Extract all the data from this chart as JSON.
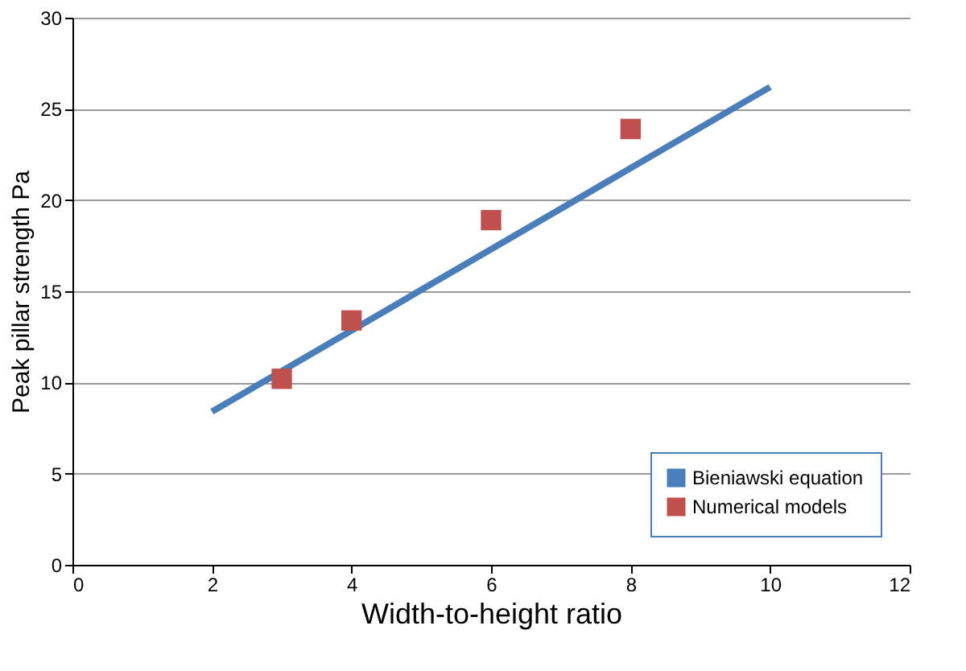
{
  "chart_data": {
    "type": "scatter",
    "xlabel": "Width-to-height ratio",
    "ylabel": "Peak pillar strength  Pa",
    "series": [
      {
        "name": "Bieniawski equation",
        "type": "line",
        "color": "#4a7ebb",
        "x": [
          2,
          10
        ],
        "values": [
          8.4,
          26.2
        ],
        "marker": "none"
      },
      {
        "name": "Numerical models",
        "color": "#c0504d",
        "x": [
          3,
          4,
          6,
          8
        ],
        "values": [
          10.2,
          13.4,
          18.9,
          23.9
        ],
        "marker": "square"
      }
    ],
    "xlim": [
      0,
      12
    ],
    "xticks": [
      0,
      2,
      4,
      6,
      8,
      10,
      12
    ],
    "ylim": [
      0,
      30
    ],
    "yticks": [
      0,
      5,
      10,
      15,
      20,
      25,
      30
    ],
    "grid": "y",
    "legend": "bottom right"
  }
}
